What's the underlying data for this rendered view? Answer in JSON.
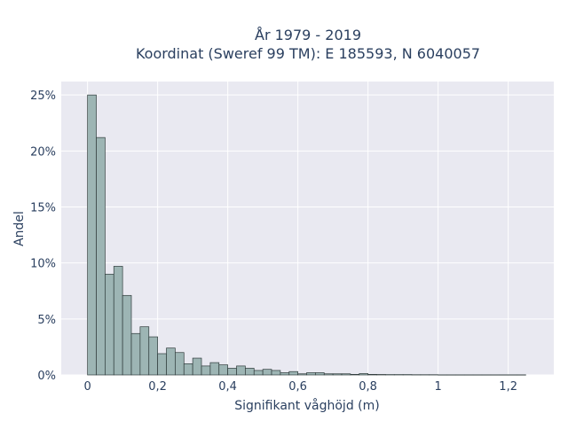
{
  "chart_data": {
    "type": "bar",
    "title_line1": "År 1979 - 2019",
    "title_line2": "Koordinat (Sweref 99 TM): E 185593, N 6040057",
    "xlabel": "Signifikant våghöjd (m)",
    "ylabel": "Andel",
    "xlim": [
      -0.075,
      1.33
    ],
    "ylim": [
      0,
      0.262
    ],
    "bin_width": 0.025,
    "x_ticks": [
      0,
      0.2,
      0.4,
      0.6,
      0.8,
      1,
      1.2
    ],
    "x_tick_labels": [
      "0",
      "0,2",
      "0,4",
      "0,6",
      "0,8",
      "1",
      "1,2"
    ],
    "y_ticks": [
      0,
      0.05,
      0.1,
      0.15,
      0.2,
      0.25
    ],
    "y_tick_labels": [
      "0%",
      "5%",
      "10%",
      "15%",
      "20%",
      "25%"
    ],
    "bin_starts": [
      0,
      0.025,
      0.05,
      0.075,
      0.1,
      0.125,
      0.15,
      0.175,
      0.2,
      0.225,
      0.25,
      0.275,
      0.3,
      0.325,
      0.35,
      0.375,
      0.4,
      0.425,
      0.45,
      0.475,
      0.5,
      0.525,
      0.55,
      0.575,
      0.6,
      0.625,
      0.65,
      0.675,
      0.7,
      0.725,
      0.75,
      0.775,
      0.8,
      0.825,
      0.85,
      0.875,
      0.9,
      0.925,
      0.95,
      0.975,
      1.0,
      1.025,
      1.05,
      1.075,
      1.1,
      1.125,
      1.15,
      1.175,
      1.2,
      1.225
    ],
    "values": [
      0.25,
      0.212,
      0.09,
      0.097,
      0.071,
      0.037,
      0.043,
      0.034,
      0.019,
      0.024,
      0.02,
      0.01,
      0.015,
      0.008,
      0.011,
      0.009,
      0.006,
      0.008,
      0.006,
      0.004,
      0.005,
      0.004,
      0.002,
      0.003,
      0.001,
      0.002,
      0.002,
      0.001,
      0.001,
      0.001,
      0.0005,
      0.0012,
      0.0005,
      0.0004,
      0.0003,
      0.0003,
      0.0003,
      0.0002,
      0.0002,
      0.0002,
      0.0001,
      0.0001,
      0.0001,
      0.0001,
      0.0001,
      0.0001,
      0.0001,
      0.0001,
      0.0001,
      0.0001
    ],
    "grid": true,
    "colors": {
      "bar_fill": "#9db5b4",
      "bar_stroke": "#2f3b3b",
      "plot_background": "#e9e9f1",
      "grid": "#ffffff",
      "text": "#2a3f5f"
    }
  }
}
